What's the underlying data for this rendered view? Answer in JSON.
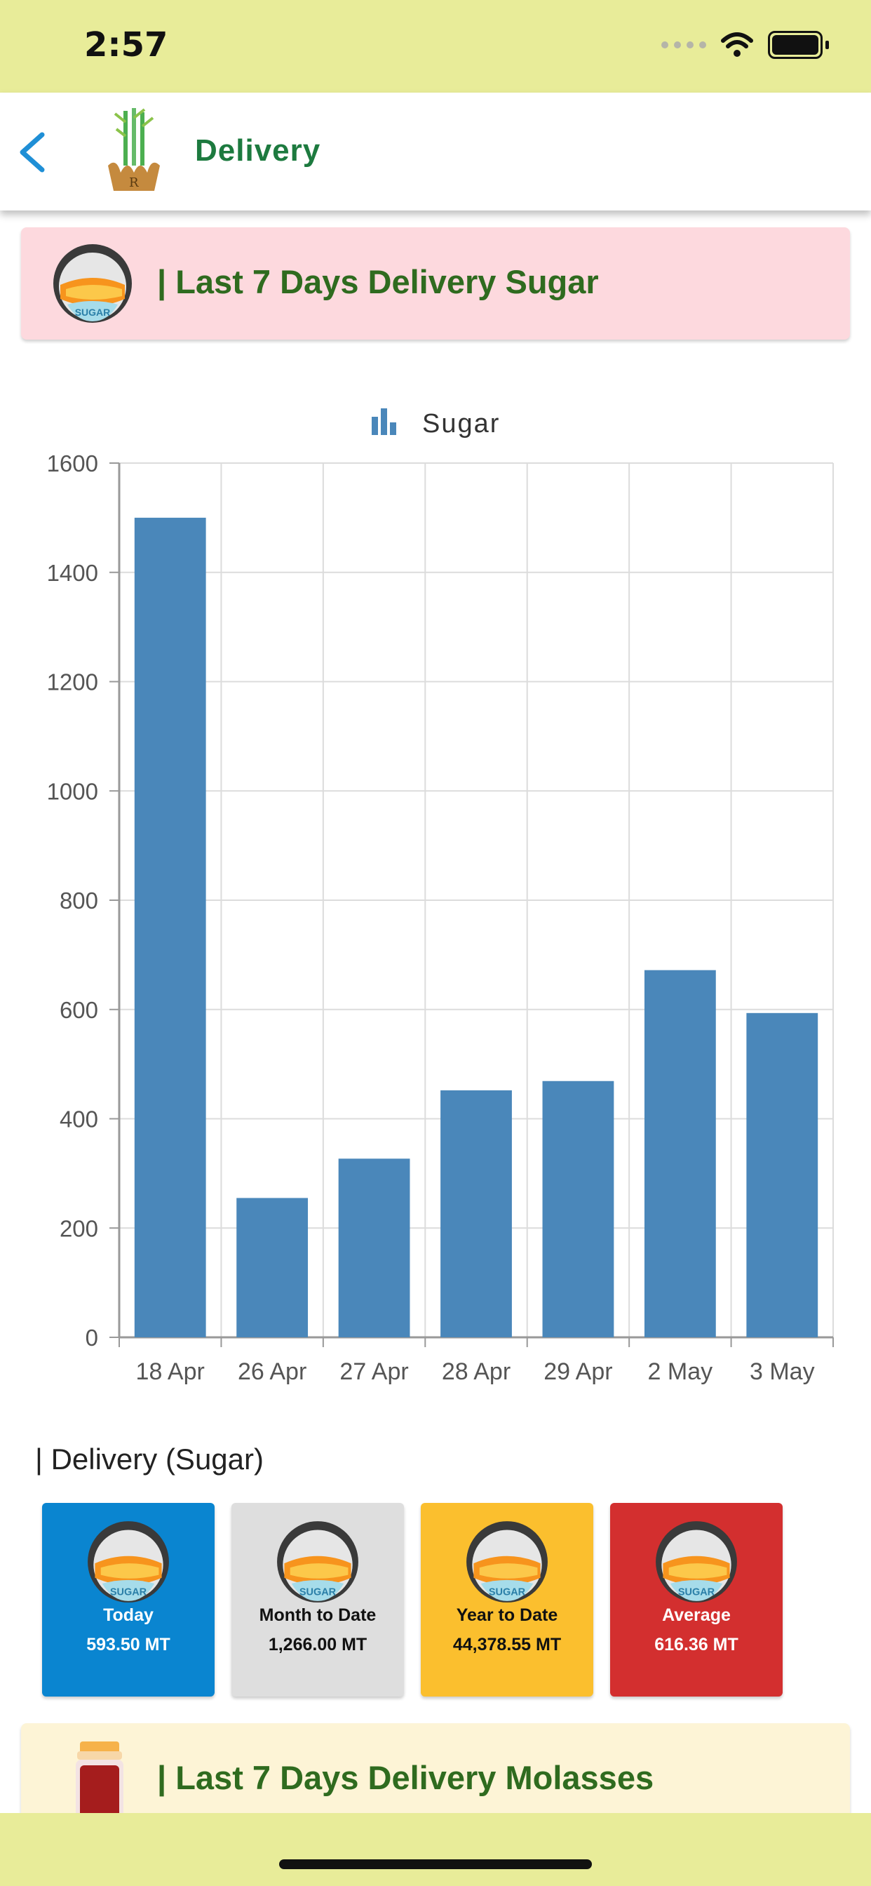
{
  "status_bar": {
    "time": "2:57"
  },
  "app_bar": {
    "title": "Delivery"
  },
  "sugar_header": {
    "title": "| Last 7 Days Delivery Sugar",
    "icon_label": "SUGAR"
  },
  "chart_data": {
    "type": "bar",
    "legend": "Sugar",
    "categories": [
      "18 Apr",
      "26 Apr",
      "27 Apr",
      "28 Apr",
      "29 Apr",
      "2 May",
      "3 May"
    ],
    "series": [
      {
        "name": "Sugar",
        "values": [
          1500,
          255,
          327,
          452,
          469,
          672,
          593.5
        ]
      }
    ],
    "ylim": [
      0,
      1600
    ],
    "yticks": [
      0,
      200,
      400,
      600,
      800,
      1000,
      1200,
      1400,
      1600
    ],
    "grid": true,
    "bar_color": "#4a87ba"
  },
  "delivery_section": {
    "title": "| Delivery (Sugar)",
    "tiles": [
      {
        "label": "Today",
        "value": "593.50 MT",
        "icon_label": "SUGAR",
        "color": "#0a85d0"
      },
      {
        "label": "Month to Date",
        "value": "1,266.00 MT",
        "icon_label": "SUGAR",
        "color": "#dedede"
      },
      {
        "label": "Year to Date",
        "value": "44,378.55 MT",
        "icon_label": "SUGAR",
        "color": "#fbbf2e"
      },
      {
        "label": "Average",
        "value": "616.36 MT",
        "icon_label": "SUGAR",
        "color": "#d32f2f"
      }
    ]
  },
  "molasses_header": {
    "title": "| Last 7 Days Delivery Molasses"
  },
  "colors": {
    "accent_green": "#1d7a3f",
    "status_bar": "#e8ec99",
    "back_arrow": "#1f8fd6"
  }
}
